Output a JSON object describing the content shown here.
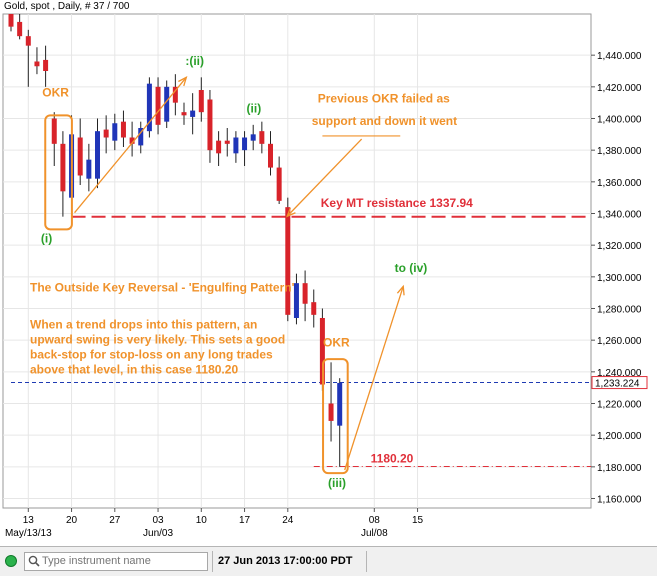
{
  "header": {
    "title": "Gold, spot , Daily, # 37 / 700"
  },
  "chart_data": {
    "type": "candlestick",
    "instrument": "Gold, spot",
    "interval": "Daily",
    "ylim": [
      1154,
      1466
    ],
    "y_ticks": [
      1160,
      1180,
      1200,
      1220,
      1240,
      1260,
      1280,
      1300,
      1320,
      1340,
      1360,
      1380,
      1400,
      1420,
      1440
    ],
    "y_tick_labels": [
      "1,160.000",
      "1,180.000",
      "1,200.000",
      "1,220.000",
      "1,240.000",
      "1,260.000",
      "1,280.000",
      "1,300.000",
      "1,320.000",
      "1,340.000",
      "1,360.000",
      "1,380.000",
      "1,400.000",
      "1,420.000",
      "1,440.000"
    ],
    "current_price": 1233.224,
    "current_price_label": "1,233.224",
    "x_labels": [
      {
        "label": "13",
        "day": 2
      },
      {
        "label": "20",
        "day": 7
      },
      {
        "label": "27",
        "day": 12
      },
      {
        "label": "03",
        "day": 17
      },
      {
        "label": "10",
        "day": 22
      },
      {
        "label": "17",
        "day": 27
      },
      {
        "label": "24",
        "day": 32
      },
      {
        "label": "08",
        "day": 42
      },
      {
        "label": "15",
        "day": 47
      }
    ],
    "x_sublabels": [
      {
        "label": "May/13/13",
        "day": 2
      },
      {
        "label": "Jun/03",
        "day": 17
      },
      {
        "label": "Jul/08",
        "day": 42
      }
    ],
    "candles": [
      {
        "day": 0,
        "open": 1466,
        "high": 1466,
        "low": 1455,
        "close": 1458
      },
      {
        "day": 1,
        "open": 1461,
        "high": 1466,
        "low": 1450,
        "close": 1452
      },
      {
        "day": 2,
        "open": 1452,
        "high": 1456,
        "low": 1420,
        "close": 1446
      },
      {
        "day": 3,
        "open": 1436,
        "high": 1445,
        "low": 1428,
        "close": 1433
      },
      {
        "day": 4,
        "open": 1437,
        "high": 1446,
        "low": 1420,
        "close": 1430
      },
      {
        "day": 5,
        "open": 1400,
        "high": 1404,
        "low": 1370,
        "close": 1384
      },
      {
        "day": 6,
        "open": 1384,
        "high": 1392,
        "low": 1338,
        "close": 1354
      },
      {
        "day": 7,
        "open": 1350,
        "high": 1402,
        "low": 1340,
        "close": 1390
      },
      {
        "day": 8,
        "open": 1388,
        "high": 1400,
        "low": 1358,
        "close": 1364
      },
      {
        "day": 9,
        "open": 1362,
        "high": 1384,
        "low": 1354,
        "close": 1374
      },
      {
        "day": 10,
        "open": 1362,
        "high": 1400,
        "low": 1356,
        "close": 1392
      },
      {
        "day": 11,
        "open": 1393,
        "high": 1402,
        "low": 1378,
        "close": 1388
      },
      {
        "day": 12,
        "open": 1386,
        "high": 1403,
        "low": 1380,
        "close": 1397
      },
      {
        "day": 13,
        "open": 1398,
        "high": 1405,
        "low": 1382,
        "close": 1388
      },
      {
        "day": 14,
        "open": 1388,
        "high": 1398,
        "low": 1376,
        "close": 1384
      },
      {
        "day": 15,
        "open": 1383,
        "high": 1398,
        "low": 1378,
        "close": 1394
      },
      {
        "day": 16,
        "open": 1392,
        "high": 1426,
        "low": 1388,
        "close": 1422
      },
      {
        "day": 17,
        "open": 1420,
        "high": 1426,
        "low": 1390,
        "close": 1396
      },
      {
        "day": 18,
        "open": 1398,
        "high": 1424,
        "low": 1394,
        "close": 1420
      },
      {
        "day": 19,
        "open": 1420,
        "high": 1428,
        "low": 1402,
        "close": 1410
      },
      {
        "day": 20,
        "open": 1404,
        "high": 1410,
        "low": 1396,
        "close": 1402
      },
      {
        "day": 21,
        "open": 1401,
        "high": 1416,
        "low": 1390,
        "close": 1405
      },
      {
        "day": 22,
        "open": 1418,
        "high": 1426,
        "low": 1398,
        "close": 1404
      },
      {
        "day": 23,
        "open": 1412,
        "high": 1418,
        "low": 1372,
        "close": 1380
      },
      {
        "day": 24,
        "open": 1386,
        "high": 1392,
        "low": 1370,
        "close": 1378
      },
      {
        "day": 25,
        "open": 1386,
        "high": 1394,
        "low": 1376,
        "close": 1384
      },
      {
        "day": 26,
        "open": 1378,
        "high": 1392,
        "low": 1372,
        "close": 1388
      },
      {
        "day": 27,
        "open": 1380,
        "high": 1392,
        "low": 1370,
        "close": 1388
      },
      {
        "day": 28,
        "open": 1386,
        "high": 1396,
        "low": 1380,
        "close": 1390
      },
      {
        "day": 29,
        "open": 1392,
        "high": 1398,
        "low": 1378,
        "close": 1384
      },
      {
        "day": 30,
        "open": 1384,
        "high": 1392,
        "low": 1364,
        "close": 1369
      },
      {
        "day": 31,
        "open": 1369,
        "high": 1376,
        "low": 1346,
        "close": 1348
      },
      {
        "day": 32,
        "open": 1344,
        "high": 1350,
        "low": 1272,
        "close": 1276
      },
      {
        "day": 33,
        "open": 1274,
        "high": 1302,
        "low": 1270,
        "close": 1296
      },
      {
        "day": 34,
        "open": 1296,
        "high": 1304,
        "low": 1272,
        "close": 1283
      },
      {
        "day": 35,
        "open": 1284,
        "high": 1292,
        "low": 1268,
        "close": 1276
      },
      {
        "day": 36,
        "open": 1274,
        "high": 1280,
        "low": 1228,
        "close": 1232
      },
      {
        "day": 37,
        "open": 1220,
        "high": 1246,
        "low": 1196,
        "close": 1209
      },
      {
        "day": 38,
        "open": 1206,
        "high": 1236,
        "low": 1180,
        "close": 1233
      }
    ],
    "lines": [
      {
        "name": "mt-resistance",
        "y": 1337.94,
        "from_day": 7,
        "to_day": 50,
        "style": "dashed",
        "color": "#e0303a"
      },
      {
        "name": "current-price-line",
        "y": 1233.224,
        "from_day": 0,
        "to_day": 50,
        "style": "dotted",
        "color": "#1f3bb3"
      },
      {
        "name": "stop-level-line",
        "y": 1180.2,
        "from_day": 35,
        "to_day": 50,
        "style": "dash-dot",
        "color": "#e0303a"
      },
      {
        "name": "failed-support-line",
        "y": 1389,
        "from_day": 36,
        "to_day": 45,
        "style": "solid",
        "color": "#f0922b"
      }
    ],
    "annotations": {
      "okr_1": "OKR",
      "okr_2": "OKR",
      "wave_i": "(i)",
      "wave_ii_a": ":(ii)",
      "wave_ii_b": "(ii)",
      "wave_iii": "(iii)",
      "to_iv": "to (iv)",
      "failed_support_1": "Previous OKR failed as",
      "failed_support_2": "support and down it went",
      "key_resistance": "Key MT resistance 1337.94",
      "level_1180": "1180.20",
      "pattern_title": "The Outside Key Reversal - 'Engulfing Pattern'",
      "desc_1": "When a trend drops into this pattern, an",
      "desc_2": "upward swing is very likely. This sets a good",
      "desc_3": "back-stop for stop-loss on any long trades",
      "desc_4": "above that level, in this case 1180.20"
    },
    "colors": {
      "up": "#2035b8",
      "down": "#d8232a",
      "wick": "#222222",
      "annotation": "#f0922b",
      "wave": "#2aa02a",
      "level": "#e0303a",
      "price_tag_border": "#e0303a"
    }
  },
  "statusbar": {
    "search_placeholder": "Type instrument name",
    "datetime": "27 Jun 2013 17:00:00 PDT"
  }
}
